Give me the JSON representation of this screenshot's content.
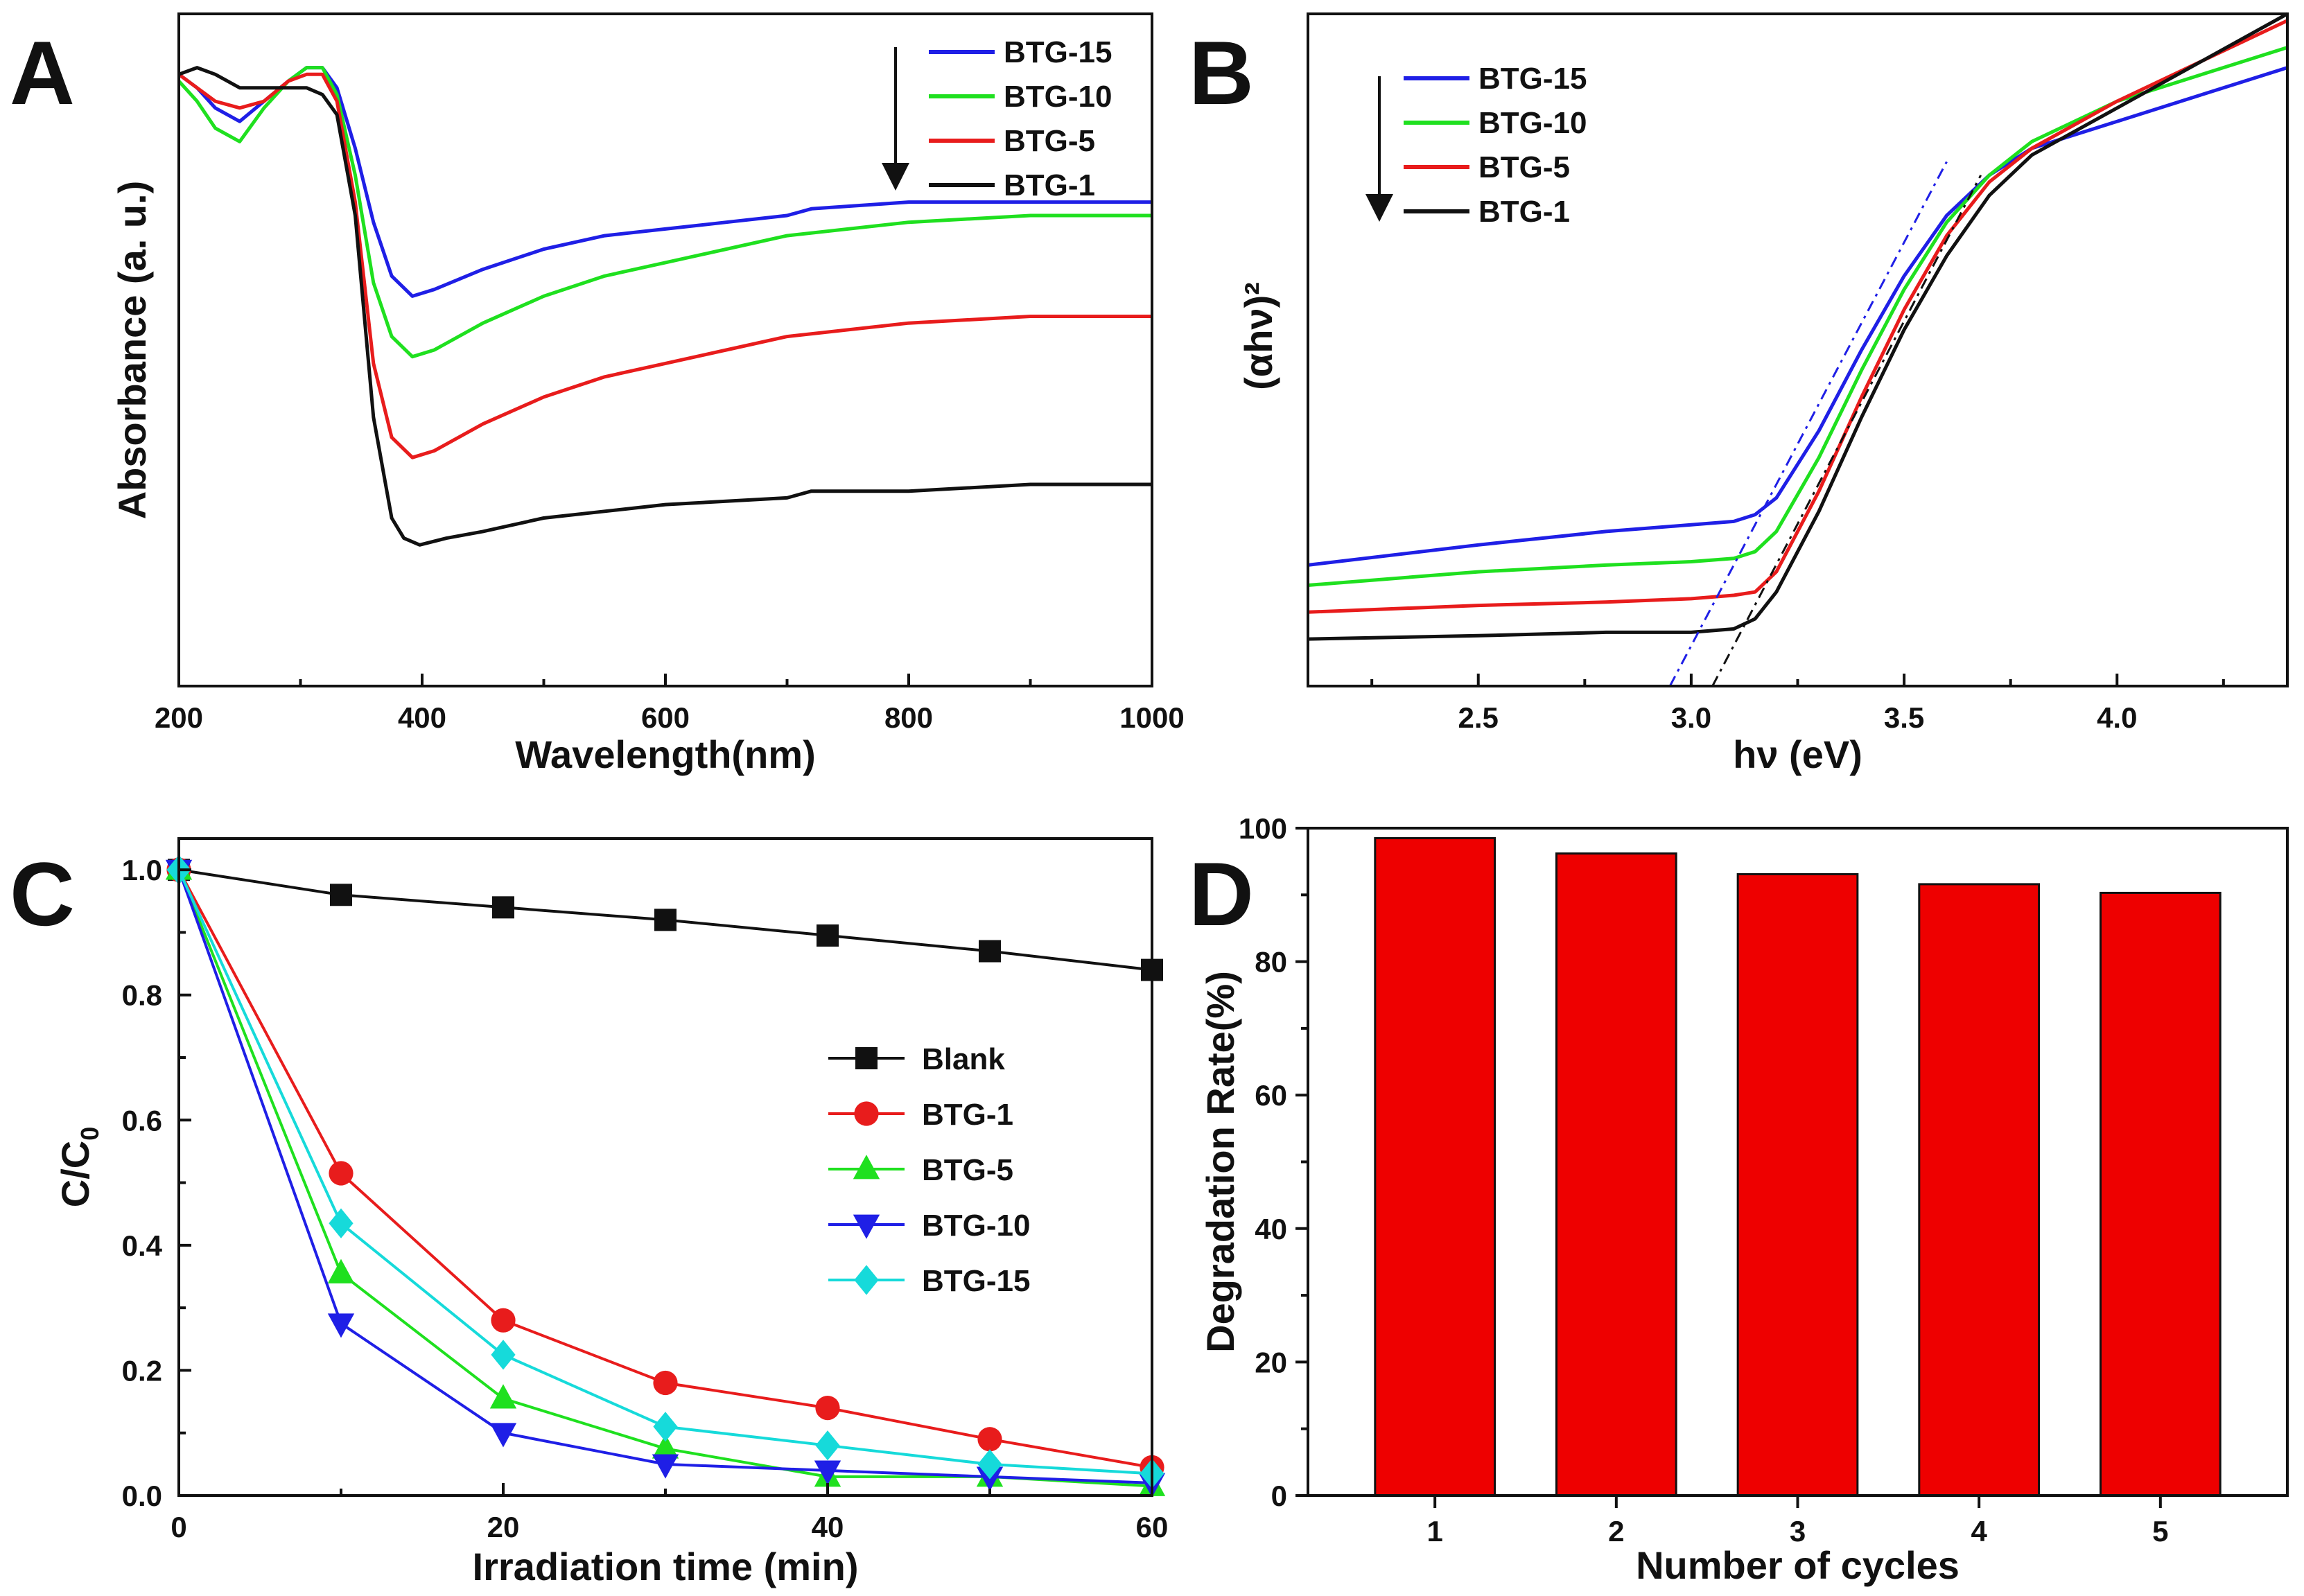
{
  "chart_data": [
    {
      "panel": "A",
      "type": "line",
      "xlabel": "Wavelength(nm)",
      "ylabel": "Absorbance (a. u.)",
      "xlim": [
        200,
        1000
      ],
      "ylim": [
        0,
        1.0
      ],
      "xticks": [
        200,
        400,
        600,
        800,
        1000
      ],
      "legend_position": "top-right",
      "legend_arrow": "down",
      "series": [
        {
          "name": "BTG-15",
          "color": "#1f1fe6",
          "x": [
            200,
            215,
            230,
            250,
            270,
            290,
            305,
            318,
            330,
            345,
            360,
            375,
            392,
            410,
            450,
            500,
            550,
            600,
            650,
            700,
            720,
            800,
            900,
            1000
          ],
          "y": [
            0.91,
            0.89,
            0.86,
            0.84,
            0.87,
            0.9,
            0.92,
            0.92,
            0.89,
            0.8,
            0.69,
            0.61,
            0.58,
            0.59,
            0.62,
            0.65,
            0.67,
            0.68,
            0.69,
            0.7,
            0.71,
            0.72,
            0.72,
            0.72
          ]
        },
        {
          "name": "BTG-10",
          "color": "#1fe01f",
          "x": [
            200,
            215,
            230,
            250,
            270,
            290,
            305,
            318,
            330,
            345,
            360,
            375,
            392,
            410,
            450,
            500,
            550,
            600,
            650,
            700,
            800,
            900,
            1000
          ],
          "y": [
            0.9,
            0.87,
            0.83,
            0.81,
            0.86,
            0.9,
            0.92,
            0.92,
            0.88,
            0.76,
            0.6,
            0.52,
            0.49,
            0.5,
            0.54,
            0.58,
            0.61,
            0.63,
            0.65,
            0.67,
            0.69,
            0.7,
            0.7
          ]
        },
        {
          "name": "BTG-5",
          "color": "#e81c1c",
          "x": [
            200,
            215,
            230,
            250,
            270,
            290,
            305,
            318,
            330,
            345,
            360,
            375,
            392,
            410,
            450,
            500,
            550,
            600,
            650,
            700,
            800,
            900,
            1000
          ],
          "y": [
            0.91,
            0.89,
            0.87,
            0.86,
            0.87,
            0.9,
            0.91,
            0.91,
            0.87,
            0.72,
            0.48,
            0.37,
            0.34,
            0.35,
            0.39,
            0.43,
            0.46,
            0.48,
            0.5,
            0.52,
            0.54,
            0.55,
            0.55
          ]
        },
        {
          "name": "BTG-1",
          "color": "#111111",
          "x": [
            200,
            215,
            230,
            250,
            270,
            290,
            305,
            318,
            330,
            345,
            360,
            375,
            385,
            398,
            420,
            450,
            500,
            550,
            600,
            650,
            700,
            720,
            800,
            900,
            1000
          ],
          "y": [
            0.91,
            0.92,
            0.91,
            0.89,
            0.89,
            0.89,
            0.89,
            0.88,
            0.85,
            0.7,
            0.4,
            0.25,
            0.22,
            0.21,
            0.22,
            0.23,
            0.25,
            0.26,
            0.27,
            0.275,
            0.28,
            0.29,
            0.29,
            0.3,
            0.3
          ]
        }
      ]
    },
    {
      "panel": "B",
      "type": "line",
      "xlabel": "hν (eV)",
      "ylabel": "(αhν)²",
      "xlim": [
        2.1,
        4.4
      ],
      "ylim": [
        0,
        1.0
      ],
      "xticks": [
        2.5,
        3.0,
        3.5,
        4.0
      ],
      "legend_position": "top-left",
      "legend_arrow": "down",
      "series": [
        {
          "name": "BTG-15",
          "color": "#1f1fe6",
          "x": [
            2.1,
            2.5,
            2.8,
            3.0,
            3.1,
            3.15,
            3.2,
            3.3,
            3.4,
            3.5,
            3.6,
            3.7,
            3.8,
            4.0,
            4.2,
            4.4
          ],
          "y": [
            0.18,
            0.21,
            0.23,
            0.24,
            0.245,
            0.255,
            0.28,
            0.38,
            0.5,
            0.61,
            0.7,
            0.76,
            0.8,
            0.84,
            0.88,
            0.92
          ]
        },
        {
          "name": "BTG-10",
          "color": "#1fe01f",
          "x": [
            2.1,
            2.5,
            2.8,
            3.0,
            3.1,
            3.15,
            3.2,
            3.3,
            3.4,
            3.5,
            3.6,
            3.7,
            3.8,
            4.0,
            4.2,
            4.4
          ],
          "y": [
            0.15,
            0.17,
            0.18,
            0.185,
            0.19,
            0.2,
            0.23,
            0.34,
            0.47,
            0.59,
            0.69,
            0.76,
            0.81,
            0.87,
            0.91,
            0.95
          ]
        },
        {
          "name": "BTG-5",
          "color": "#e81c1c",
          "x": [
            2.1,
            2.5,
            2.8,
            3.0,
            3.1,
            3.15,
            3.2,
            3.3,
            3.4,
            3.5,
            3.6,
            3.7,
            3.8,
            4.0,
            4.2,
            4.4
          ],
          "y": [
            0.11,
            0.12,
            0.125,
            0.13,
            0.135,
            0.14,
            0.17,
            0.29,
            0.43,
            0.56,
            0.67,
            0.75,
            0.8,
            0.87,
            0.93,
            0.99
          ]
        },
        {
          "name": "BTG-1",
          "color": "#111111",
          "x": [
            2.1,
            2.5,
            2.8,
            3.0,
            3.1,
            3.15,
            3.2,
            3.3,
            3.4,
            3.5,
            3.6,
            3.7,
            3.8,
            4.0,
            4.2,
            4.4
          ],
          "y": [
            0.07,
            0.075,
            0.08,
            0.08,
            0.085,
            0.1,
            0.14,
            0.26,
            0.4,
            0.53,
            0.64,
            0.73,
            0.79,
            0.86,
            0.93,
            1.0
          ]
        }
      ],
      "tangent_lines": [
        {
          "color": "#1f1fe6",
          "x": [
            2.95,
            3.6
          ],
          "y": [
            0.0,
            0.78
          ]
        },
        {
          "color": "#111111",
          "x": [
            3.05,
            3.68
          ],
          "y": [
            0.0,
            0.76
          ]
        }
      ]
    },
    {
      "panel": "C",
      "type": "line",
      "xlabel": "Irradiation time (min)",
      "ylabel": "C/C",
      "ylabel_sub": "0",
      "xlim": [
        0,
        60
      ],
      "ylim": [
        0,
        1.05
      ],
      "xticks": [
        0,
        20,
        40,
        60
      ],
      "yticks": [
        0.0,
        0.2,
        0.4,
        0.6,
        0.8,
        1.0
      ],
      "ytick_labels": [
        "0.0",
        "0.2",
        "0.4",
        "0.6",
        "0.8",
        "1.0"
      ],
      "legend_position": "center-right",
      "x": [
        0,
        10,
        20,
        30,
        40,
        50,
        60
      ],
      "series": [
        {
          "name": "Blank",
          "color": "#111111",
          "marker": "square",
          "values": [
            1.0,
            0.96,
            0.94,
            0.92,
            0.895,
            0.87,
            0.84
          ]
        },
        {
          "name": "BTG-1",
          "color": "#e81c1c",
          "marker": "circle",
          "values": [
            1.0,
            0.515,
            0.28,
            0.18,
            0.14,
            0.09,
            0.045
          ]
        },
        {
          "name": "BTG-5",
          "color": "#1fe01f",
          "marker": "triangle-up",
          "values": [
            1.0,
            0.355,
            0.155,
            0.075,
            0.03,
            0.03,
            0.015
          ]
        },
        {
          "name": "BTG-10",
          "color": "#1f1fe6",
          "marker": "triangle-down",
          "values": [
            1.0,
            0.275,
            0.1,
            0.05,
            0.04,
            0.03,
            0.02
          ]
        },
        {
          "name": "BTG-15",
          "color": "#16dada",
          "marker": "diamond",
          "values": [
            1.0,
            0.435,
            0.225,
            0.11,
            0.08,
            0.05,
            0.035
          ]
        }
      ]
    },
    {
      "panel": "D",
      "type": "bar",
      "xlabel": "Number of cycles",
      "ylabel": "Degradation Rate(%)",
      "ylim": [
        0,
        100
      ],
      "yticks": [
        0,
        20,
        40,
        60,
        80,
        100
      ],
      "categories": [
        "1",
        "2",
        "3",
        "4",
        "5"
      ],
      "values": [
        98.5,
        96.2,
        93.1,
        91.6,
        90.3
      ],
      "color": "#ee0000"
    }
  ]
}
